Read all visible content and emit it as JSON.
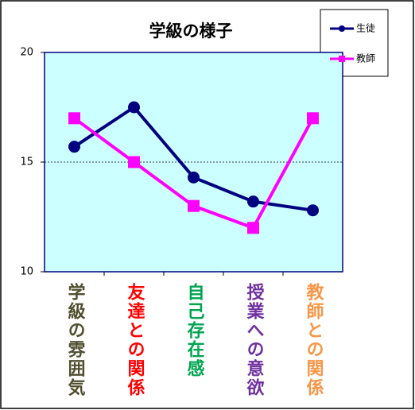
{
  "chart_data": {
    "type": "line",
    "title": "学級の様子",
    "categories": [
      "学級の雰囲気",
      "友達との関係",
      "自己存在感",
      "授業への意欲",
      "教師との関係"
    ],
    "category_colors": [
      "#4f4f2f",
      "#ff0000",
      "#00a550",
      "#7030a0",
      "#f79646"
    ],
    "series": [
      {
        "name": "生徒",
        "color": "#000080",
        "marker": "circle",
        "values": [
          15.7,
          17.5,
          14.3,
          13.2,
          12.8
        ]
      },
      {
        "name": "教師",
        "color": "#ff00ff",
        "marker": "square",
        "values": [
          17,
          15,
          13,
          12,
          17
        ]
      }
    ],
    "ylim": [
      10,
      20
    ],
    "yticks": [
      10,
      15,
      20
    ],
    "grid": true,
    "plot_background": "#ccffff"
  }
}
